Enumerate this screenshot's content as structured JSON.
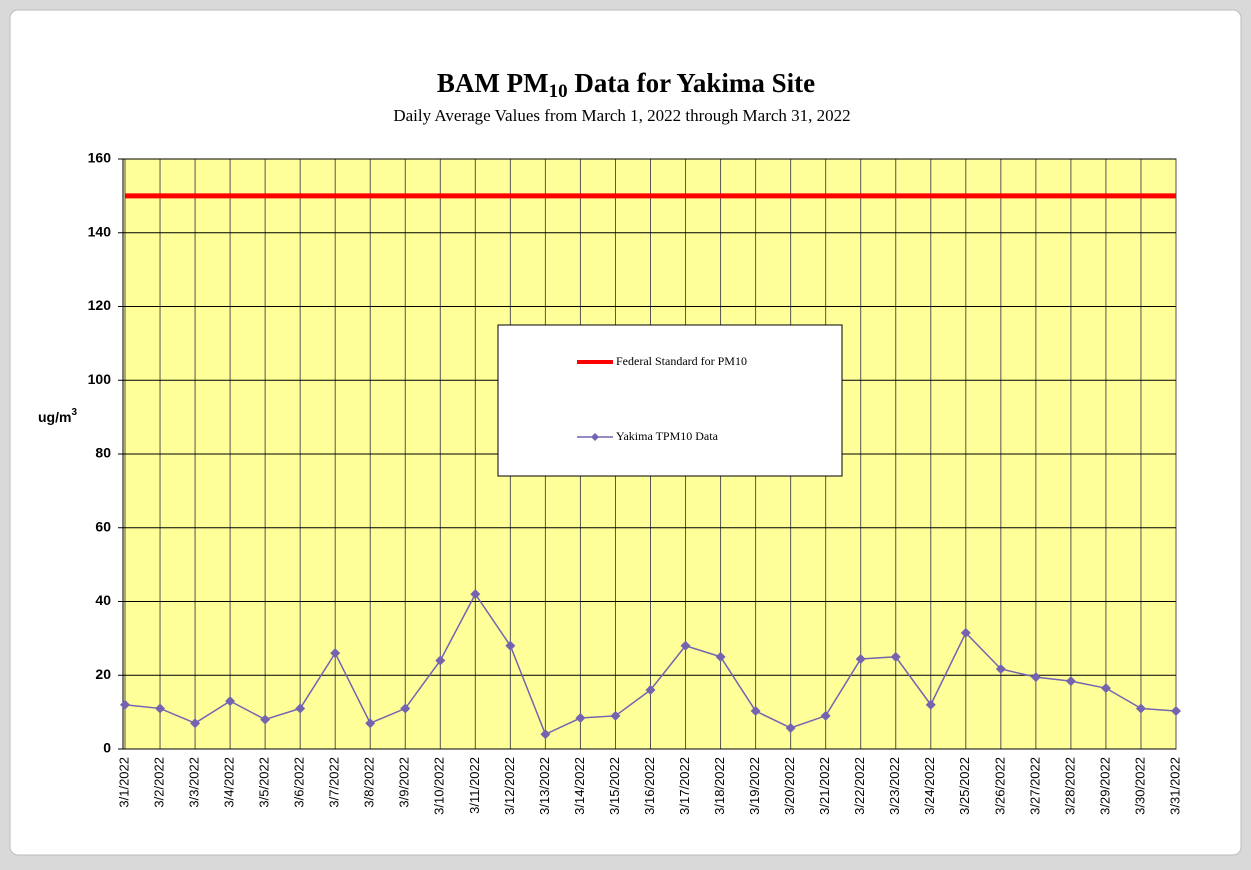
{
  "chart_data": {
    "type": "line",
    "title": {
      "main": "BAM PM",
      "subscript": "10",
      "rest": " Data for Yakima Site"
    },
    "subtitle": "Daily  Average  Values  from  March  1, 2022  through   March  31, 2022",
    "y_label": {
      "main": "ug/m",
      "superscript": "3"
    },
    "categories": [
      "3/1/2022",
      "3/2/2022",
      "3/3/2022",
      "3/4/2022",
      "3/5/2022",
      "3/6/2022",
      "3/7/2022",
      "3/8/2022",
      "3/9/2022",
      "3/10/2022",
      "3/11/2022",
      "3/12/2022",
      "3/13/2022",
      "3/14/2022",
      "3/15/2022",
      "3/16/2022",
      "3/17/2022",
      "3/18/2022",
      "3/19/2022",
      "3/20/2022",
      "3/21/2022",
      "3/22/2022",
      "3/23/2022",
      "3/24/2022",
      "3/25/2022",
      "3/26/2022",
      "3/27/2022",
      "3/28/2022",
      "3/29/2022",
      "3/30/2022",
      "3/31/2022"
    ],
    "series": [
      {
        "name": "Federal Standard for PM10",
        "color": "#ff0000",
        "marker": false,
        "values": [
          150,
          150,
          150,
          150,
          150,
          150,
          150,
          150,
          150,
          150,
          150,
          150,
          150,
          150,
          150,
          150,
          150,
          150,
          150,
          150,
          150,
          150,
          150,
          150,
          150,
          150,
          150,
          150,
          150,
          150,
          150
        ]
      },
      {
        "name": "Yakima TPM10 Data",
        "color": "#7464b0",
        "marker": true,
        "values": [
          12,
          11,
          7,
          13,
          8,
          11,
          26,
          7,
          11,
          24,
          42,
          28,
          4,
          8.4,
          9,
          16,
          28,
          25,
          10.3,
          5.7,
          9,
          24.4,
          25,
          12,
          31.5,
          21.7,
          19.5,
          18.4,
          16.5,
          11,
          10.3
        ]
      }
    ],
    "ylim": [
      0,
      160
    ],
    "yticks": [
      0,
      20,
      40,
      60,
      80,
      100,
      120,
      140,
      160
    ],
    "grid": true,
    "legend": "center"
  }
}
